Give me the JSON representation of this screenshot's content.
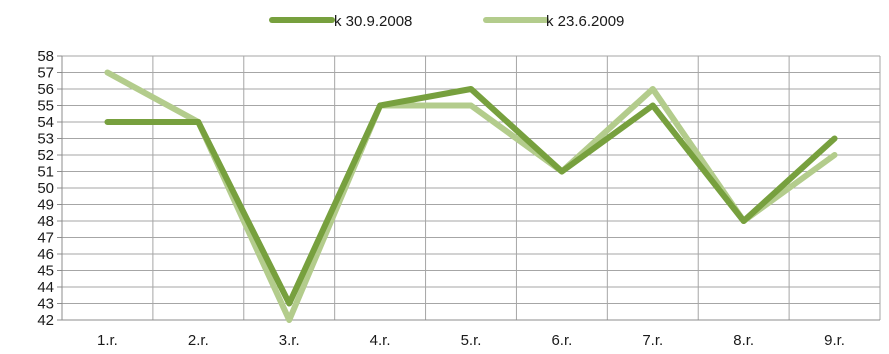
{
  "chart_data": {
    "type": "line",
    "title": "",
    "xlabel": "",
    "ylabel": "",
    "categories": [
      "1.r.",
      "2.r.",
      "3.r.",
      "4.r.",
      "5.r.",
      "6.r.",
      "7.r.",
      "8.r.",
      "9.r."
    ],
    "ylim": [
      42,
      58
    ],
    "ystep": 1,
    "grid": true,
    "legend_position": "top",
    "series": [
      {
        "name": "k 30.9.2008",
        "color": "#77a03e",
        "values": [
          54,
          54,
          43,
          55,
          56,
          51,
          55,
          48,
          53
        ]
      },
      {
        "name": "k 23.6.2009",
        "color": "#b3cc8c",
        "values": [
          57,
          54,
          42,
          55,
          55,
          51,
          56,
          48,
          52
        ]
      }
    ]
  }
}
